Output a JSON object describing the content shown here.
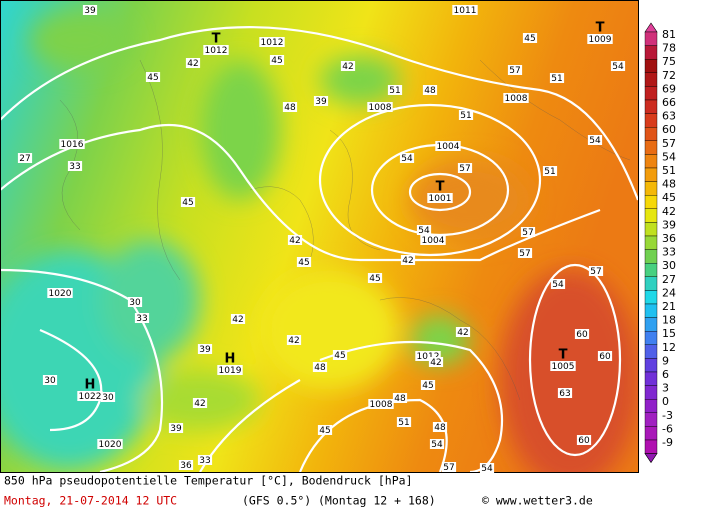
{
  "map": {
    "pressure_centers": [
      {
        "symbol": "T",
        "value": "1012"
      },
      {
        "symbol": "T",
        "value": "1009"
      },
      {
        "symbol": "T",
        "value": "1001"
      },
      {
        "symbol": "T",
        "value": "1005"
      },
      {
        "symbol": "H",
        "value": "1019"
      },
      {
        "symbol": "H",
        "value": "1022"
      }
    ],
    "isobar_labels": [
      "1011",
      "1012",
      "1008",
      "1008",
      "1016",
      "1004",
      "1004",
      "1020",
      "1020",
      "1012",
      "1008"
    ],
    "contour_labels": [
      "39",
      "45",
      "42",
      "48",
      "45",
      "42",
      "39",
      "51",
      "51",
      "48",
      "45",
      "51",
      "54",
      "54",
      "51",
      "54",
      "57",
      "57",
      "54",
      "42",
      "45",
      "45",
      "42",
      "45",
      "27",
      "33",
      "30",
      "33",
      "39",
      "42",
      "42",
      "45",
      "42",
      "42",
      "45",
      "48",
      "57",
      "57",
      "54",
      "60",
      "60",
      "63",
      "60",
      "48",
      "51",
      "48",
      "54",
      "57",
      "45",
      "42",
      "39",
      "36",
      "33",
      "30",
      "30",
      "54",
      "57"
    ]
  },
  "colorbar": {
    "labels": [
      "81",
      "78",
      "75",
      "72",
      "69",
      "66",
      "63",
      "60",
      "57",
      "54",
      "51",
      "48",
      "45",
      "42",
      "39",
      "36",
      "33",
      "30",
      "27",
      "24",
      "21",
      "18",
      "15",
      "12",
      "9",
      "6",
      "3",
      "0",
      "-3",
      "-6",
      "-9"
    ]
  },
  "footer": {
    "title": "850 hPa pseudopotentielle Temperatur [°C], Bodendruck [hPa]",
    "date": "Montag, 21-07-2014  12 UTC",
    "model": "(GFS 0.5°)",
    "run": "(Montag 12 + 168)",
    "credit": "© www.wetter3.de"
  }
}
